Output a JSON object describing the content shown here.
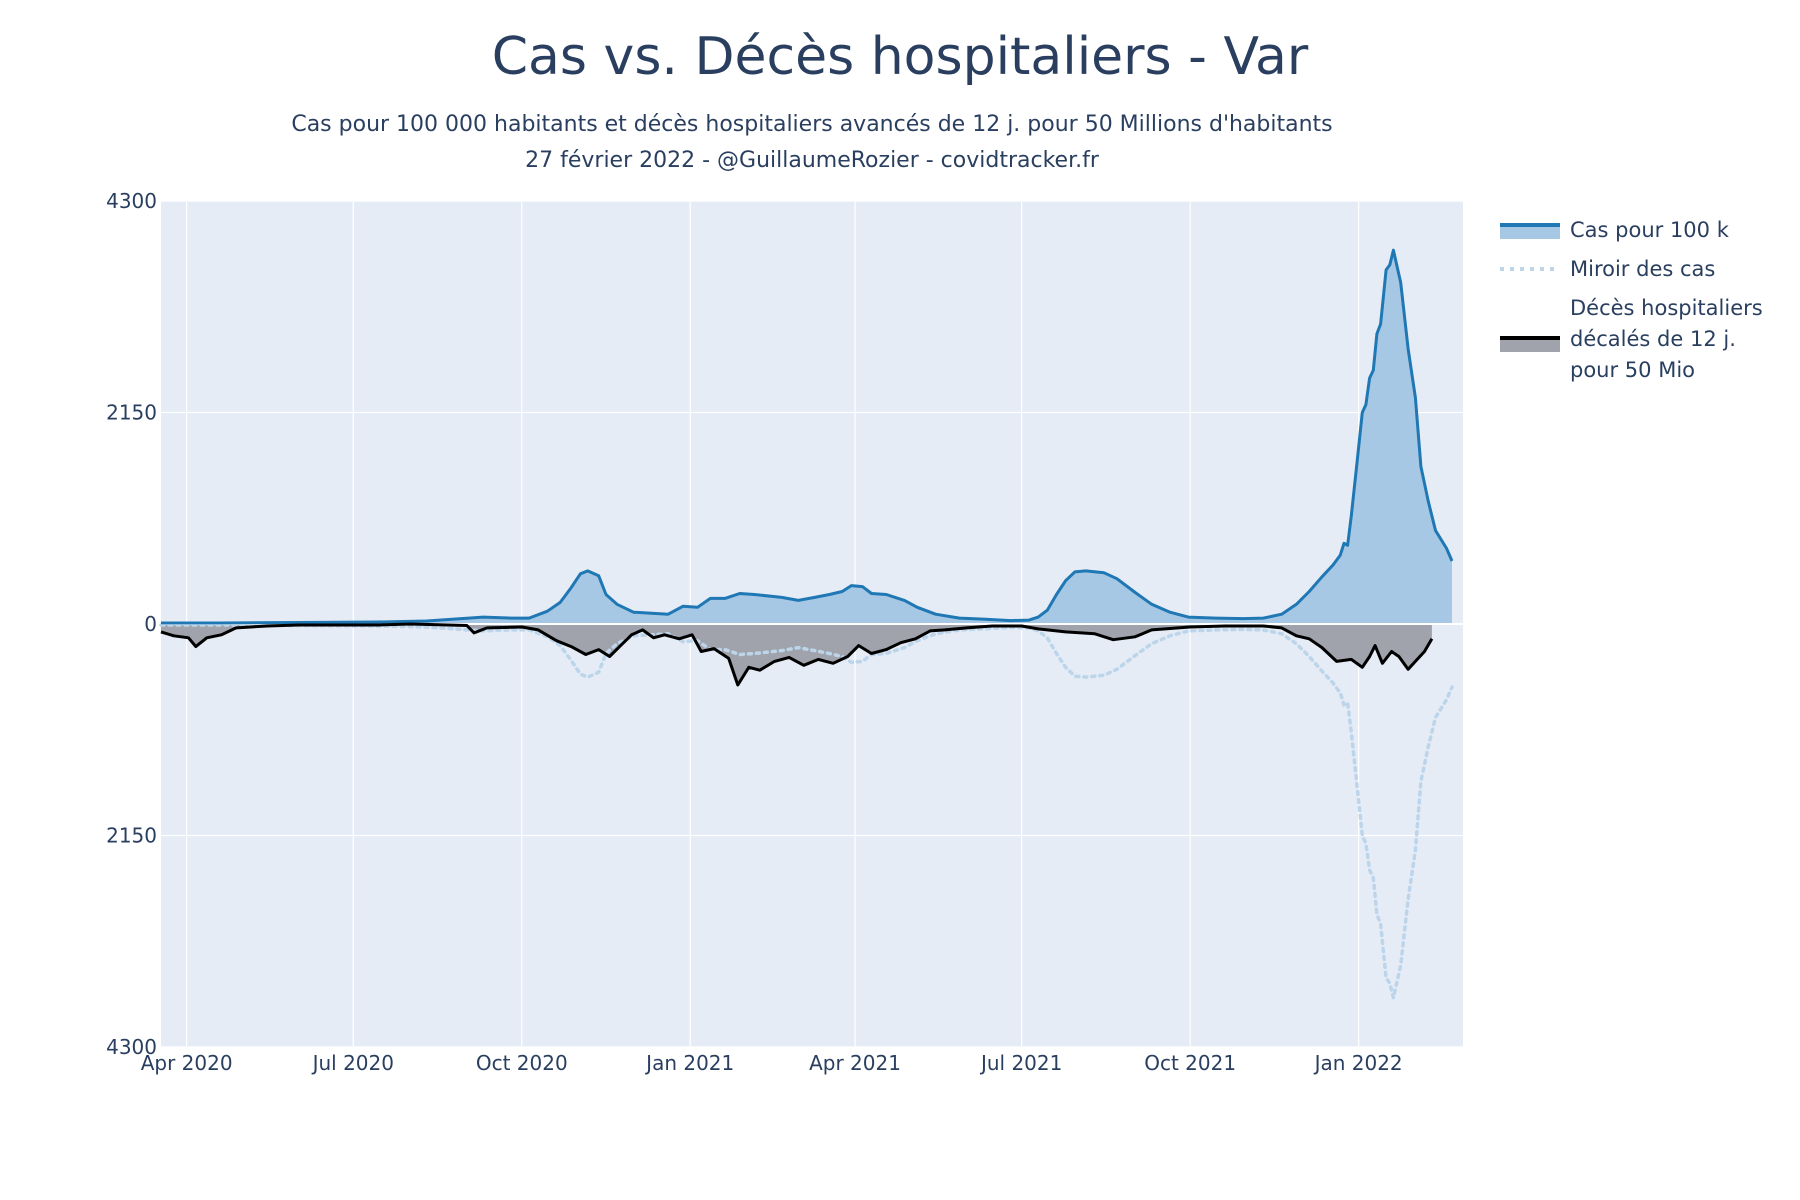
{
  "chart_data": {
    "type": "area",
    "title": "Cas vs. Décès hospitaliers - Var",
    "subtitle_lines": [
      "Cas pour 100 000 habitants et décès hospitaliers avancés de 12 j. pour 50 Millions d'habitants",
      "27 février 2022 - @GuillaumeRozier - covidtracker.fr"
    ],
    "x_range": [
      "2020-03-18",
      "2022-02-27"
    ],
    "x_ticks": [
      {
        "date": "2020-04-01",
        "label": "Apr 2020"
      },
      {
        "date": "2020-07-01",
        "label": "Jul 2020"
      },
      {
        "date": "2020-10-01",
        "label": "Oct 2020"
      },
      {
        "date": "2021-01-01",
        "label": "Jan 2021"
      },
      {
        "date": "2021-04-01",
        "label": "Apr 2021"
      },
      {
        "date": "2021-07-01",
        "label": "Jul 2021"
      },
      {
        "date": "2021-10-01",
        "label": "Oct 2021"
      },
      {
        "date": "2022-01-01",
        "label": "Jan 2022"
      }
    ],
    "y_range": [
      -4300,
      4300
    ],
    "y_ticks": [
      {
        "value": 4300,
        "label": "4300"
      },
      {
        "value": 2150,
        "label": "2150"
      },
      {
        "value": 0,
        "label": "0"
      },
      {
        "value": -2150,
        "label": "2150"
      },
      {
        "value": -4300,
        "label": "4300"
      }
    ],
    "grid": true,
    "legend_position": "right",
    "colors": {
      "plot_bg": "#e5ecf6",
      "grid": "#ffffff",
      "cases_line": "#1f77b4",
      "cases_fill": "#a6c8e4",
      "mirror_line": "#bcd5ea",
      "deaths_line": "#000000",
      "deaths_fill": "#a0a3ab"
    },
    "series": [
      {
        "name": "Cas pour 100 k",
        "style": "line-fill",
        "points": [
          [
            "2020-03-18",
            10
          ],
          [
            "2020-04-20",
            10
          ],
          [
            "2020-06-01",
            15
          ],
          [
            "2020-07-15",
            20
          ],
          [
            "2020-08-10",
            30
          ],
          [
            "2020-08-25",
            50
          ],
          [
            "2020-09-10",
            70
          ],
          [
            "2020-09-25",
            60
          ],
          [
            "2020-10-05",
            60
          ],
          [
            "2020-10-15",
            130
          ],
          [
            "2020-10-22",
            220
          ],
          [
            "2020-10-28",
            370
          ],
          [
            "2020-11-02",
            510
          ],
          [
            "2020-11-06",
            540
          ],
          [
            "2020-11-12",
            490
          ],
          [
            "2020-11-16",
            300
          ],
          [
            "2020-11-22",
            200
          ],
          [
            "2020-12-01",
            120
          ],
          [
            "2020-12-20",
            100
          ],
          [
            "2020-12-28",
            180
          ],
          [
            "2021-01-05",
            170
          ],
          [
            "2021-01-12",
            260
          ],
          [
            "2021-01-20",
            260
          ],
          [
            "2021-01-28",
            310
          ],
          [
            "2021-02-05",
            300
          ],
          [
            "2021-02-20",
            270
          ],
          [
            "2021-03-01",
            240
          ],
          [
            "2021-03-10",
            270
          ],
          [
            "2021-03-18",
            300
          ],
          [
            "2021-03-25",
            330
          ],
          [
            "2021-03-30",
            390
          ],
          [
            "2021-04-05",
            380
          ],
          [
            "2021-04-10",
            310
          ],
          [
            "2021-04-18",
            300
          ],
          [
            "2021-04-28",
            240
          ],
          [
            "2021-05-05",
            170
          ],
          [
            "2021-05-15",
            100
          ],
          [
            "2021-05-28",
            60
          ],
          [
            "2021-06-10",
            50
          ],
          [
            "2021-06-25",
            35
          ],
          [
            "2021-07-05",
            40
          ],
          [
            "2021-07-10",
            70
          ],
          [
            "2021-07-15",
            140
          ],
          [
            "2021-07-20",
            300
          ],
          [
            "2021-07-25",
            440
          ],
          [
            "2021-07-30",
            530
          ],
          [
            "2021-08-05",
            540
          ],
          [
            "2021-08-15",
            520
          ],
          [
            "2021-08-22",
            460
          ],
          [
            "2021-09-01",
            320
          ],
          [
            "2021-09-10",
            200
          ],
          [
            "2021-09-20",
            120
          ],
          [
            "2021-09-30",
            70
          ],
          [
            "2021-10-15",
            60
          ],
          [
            "2021-10-30",
            55
          ],
          [
            "2021-11-10",
            60
          ],
          [
            "2021-11-20",
            100
          ],
          [
            "2021-11-28",
            200
          ],
          [
            "2021-12-05",
            330
          ],
          [
            "2021-12-12",
            480
          ],
          [
            "2021-12-18",
            600
          ],
          [
            "2021-12-22",
            700
          ],
          [
            "2021-12-24",
            820
          ],
          [
            "2021-12-26",
            800
          ],
          [
            "2021-12-28",
            1100
          ],
          [
            "2021-12-31",
            1620
          ],
          [
            "2022-01-03",
            2150
          ],
          [
            "2022-01-05",
            2230
          ],
          [
            "2022-01-07",
            2500
          ],
          [
            "2022-01-09",
            2580
          ],
          [
            "2022-01-11",
            2950
          ],
          [
            "2022-01-13",
            3050
          ],
          [
            "2022-01-16",
            3600
          ],
          [
            "2022-01-18",
            3650
          ],
          [
            "2022-01-20",
            3800
          ],
          [
            "2022-01-24",
            3470
          ],
          [
            "2022-01-28",
            2800
          ],
          [
            "2022-02-01",
            2300
          ],
          [
            "2022-02-04",
            1600
          ],
          [
            "2022-02-08",
            1250
          ],
          [
            "2022-02-12",
            950
          ],
          [
            "2022-02-18",
            770
          ],
          [
            "2022-02-21",
            640
          ]
        ]
      },
      {
        "name": "Miroir des cas",
        "style": "dotted"
      },
      {
        "name": "Décès hospitaliers décalés de 12 j. pour 50 Mio",
        "legend_lines": [
          "Décès hospitaliers",
          "décalés de 12 j.",
          "pour 50 Mio"
        ],
        "style": "line-fill-negative",
        "points": [
          [
            "2020-03-18",
            -80
          ],
          [
            "2020-03-25",
            -120
          ],
          [
            "2020-04-02",
            -140
          ],
          [
            "2020-04-06",
            -230
          ],
          [
            "2020-04-12",
            -140
          ],
          [
            "2020-04-20",
            -110
          ],
          [
            "2020-04-28",
            -40
          ],
          [
            "2020-05-15",
            -20
          ],
          [
            "2020-06-01",
            -10
          ],
          [
            "2020-07-15",
            -10
          ],
          [
            "2020-08-01",
            0
          ],
          [
            "2020-09-01",
            -15
          ],
          [
            "2020-09-05",
            -90
          ],
          [
            "2020-09-12",
            -40
          ],
          [
            "2020-10-01",
            -30
          ],
          [
            "2020-10-10",
            -60
          ],
          [
            "2020-10-20",
            -170
          ],
          [
            "2020-10-28",
            -230
          ],
          [
            "2020-11-05",
            -310
          ],
          [
            "2020-11-12",
            -260
          ],
          [
            "2020-11-18",
            -330
          ],
          [
            "2020-11-24",
            -220
          ],
          [
            "2020-11-30",
            -110
          ],
          [
            "2020-12-06",
            -60
          ],
          [
            "2020-12-12",
            -140
          ],
          [
            "2020-12-18",
            -110
          ],
          [
            "2020-12-26",
            -150
          ],
          [
            "2021-01-02",
            -110
          ],
          [
            "2021-01-07",
            -280
          ],
          [
            "2021-01-14",
            -250
          ],
          [
            "2021-01-22",
            -350
          ],
          [
            "2021-01-27",
            -620
          ],
          [
            "2021-02-02",
            -440
          ],
          [
            "2021-02-08",
            -470
          ],
          [
            "2021-02-16",
            -380
          ],
          [
            "2021-02-24",
            -340
          ],
          [
            "2021-03-04",
            -420
          ],
          [
            "2021-03-12",
            -360
          ],
          [
            "2021-03-20",
            -400
          ],
          [
            "2021-03-28",
            -330
          ],
          [
            "2021-04-03",
            -220
          ],
          [
            "2021-04-10",
            -300
          ],
          [
            "2021-04-18",
            -260
          ],
          [
            "2021-04-26",
            -190
          ],
          [
            "2021-05-04",
            -150
          ],
          [
            "2021-05-12",
            -70
          ],
          [
            "2021-05-20",
            -60
          ],
          [
            "2021-06-01",
            -40
          ],
          [
            "2021-06-15",
            -20
          ],
          [
            "2021-07-01",
            -20
          ],
          [
            "2021-07-10",
            -50
          ],
          [
            "2021-07-25",
            -80
          ],
          [
            "2021-08-10",
            -100
          ],
          [
            "2021-08-20",
            -160
          ],
          [
            "2021-09-01",
            -130
          ],
          [
            "2021-09-10",
            -60
          ],
          [
            "2021-10-01",
            -30
          ],
          [
            "2021-10-20",
            -20
          ],
          [
            "2021-11-10",
            -20
          ],
          [
            "2021-11-20",
            -40
          ],
          [
            "2021-11-28",
            -120
          ],
          [
            "2021-12-05",
            -150
          ],
          [
            "2021-12-12",
            -240
          ],
          [
            "2021-12-20",
            -380
          ],
          [
            "2021-12-28",
            -360
          ],
          [
            "2022-01-03",
            -440
          ],
          [
            "2022-01-07",
            -330
          ],
          [
            "2022-01-10",
            -220
          ],
          [
            "2022-01-14",
            -400
          ],
          [
            "2022-01-19",
            -280
          ],
          [
            "2022-01-23",
            -330
          ],
          [
            "2022-01-28",
            -460
          ],
          [
            "2022-02-02",
            -360
          ],
          [
            "2022-02-06",
            -280
          ],
          [
            "2022-02-10",
            -150
          ]
        ]
      }
    ]
  }
}
